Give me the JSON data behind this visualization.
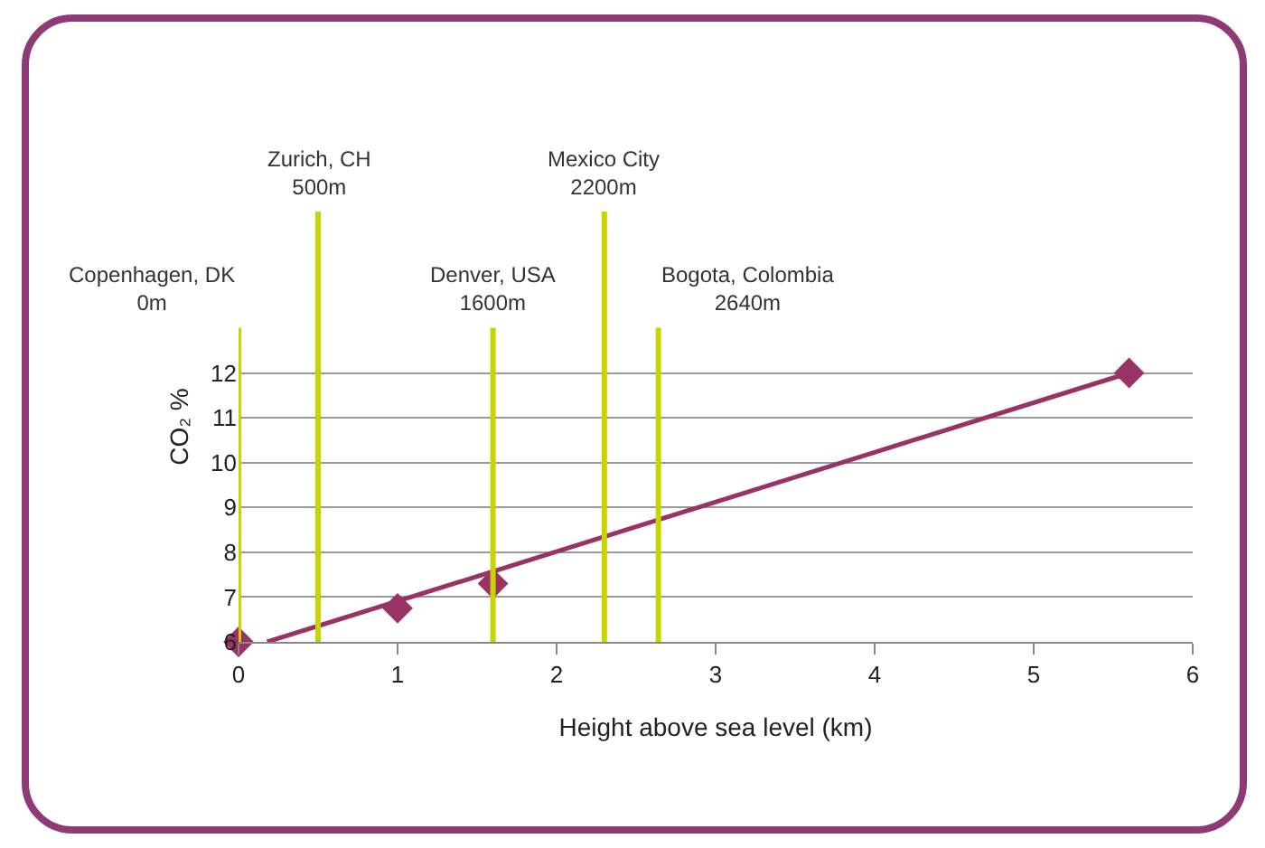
{
  "chart_data": {
    "type": "scatter",
    "xlabel": "Height above sea level (km)",
    "ylabel": "CO₂ %",
    "xlim": [
      0,
      6
    ],
    "xticks": [
      0,
      1,
      2,
      3,
      4,
      5,
      6
    ],
    "ylim": [
      6,
      15.6
    ],
    "yticks": [
      6,
      7,
      8,
      9,
      10,
      11,
      12
    ],
    "grid": "y",
    "series": [
      {
        "type": "line",
        "color": "#993366",
        "marker": "none",
        "line_style": "solid",
        "x": [
          0.18,
          5.6
        ],
        "values": [
          6,
          12
        ]
      },
      {
        "type": "scatter",
        "color": "#993366",
        "marker": "diamond",
        "x": [
          0,
          1,
          1.6,
          5.6
        ],
        "values": [
          6,
          6.75,
          7.3,
          12
        ]
      }
    ],
    "ref_lines": [
      {
        "axis": "x",
        "value": 0,
        "label": "Copenhagen, DK\n0m",
        "color": "#c8d400"
      },
      {
        "axis": "x",
        "value": 0.5,
        "label": "Zurich, CH\n500m",
        "color": "#c8d400"
      },
      {
        "axis": "x",
        "value": 1.6,
        "label": "Denver, USA\n1600m",
        "color": "#c8d400"
      },
      {
        "axis": "x",
        "value": 2.3,
        "label": "Mexico City\n2200m",
        "color": "#c8d400"
      },
      {
        "axis": "x",
        "value": 2.64,
        "label": "Bogota, Colombia\n2640m",
        "color": "#c8d400"
      }
    ]
  }
}
